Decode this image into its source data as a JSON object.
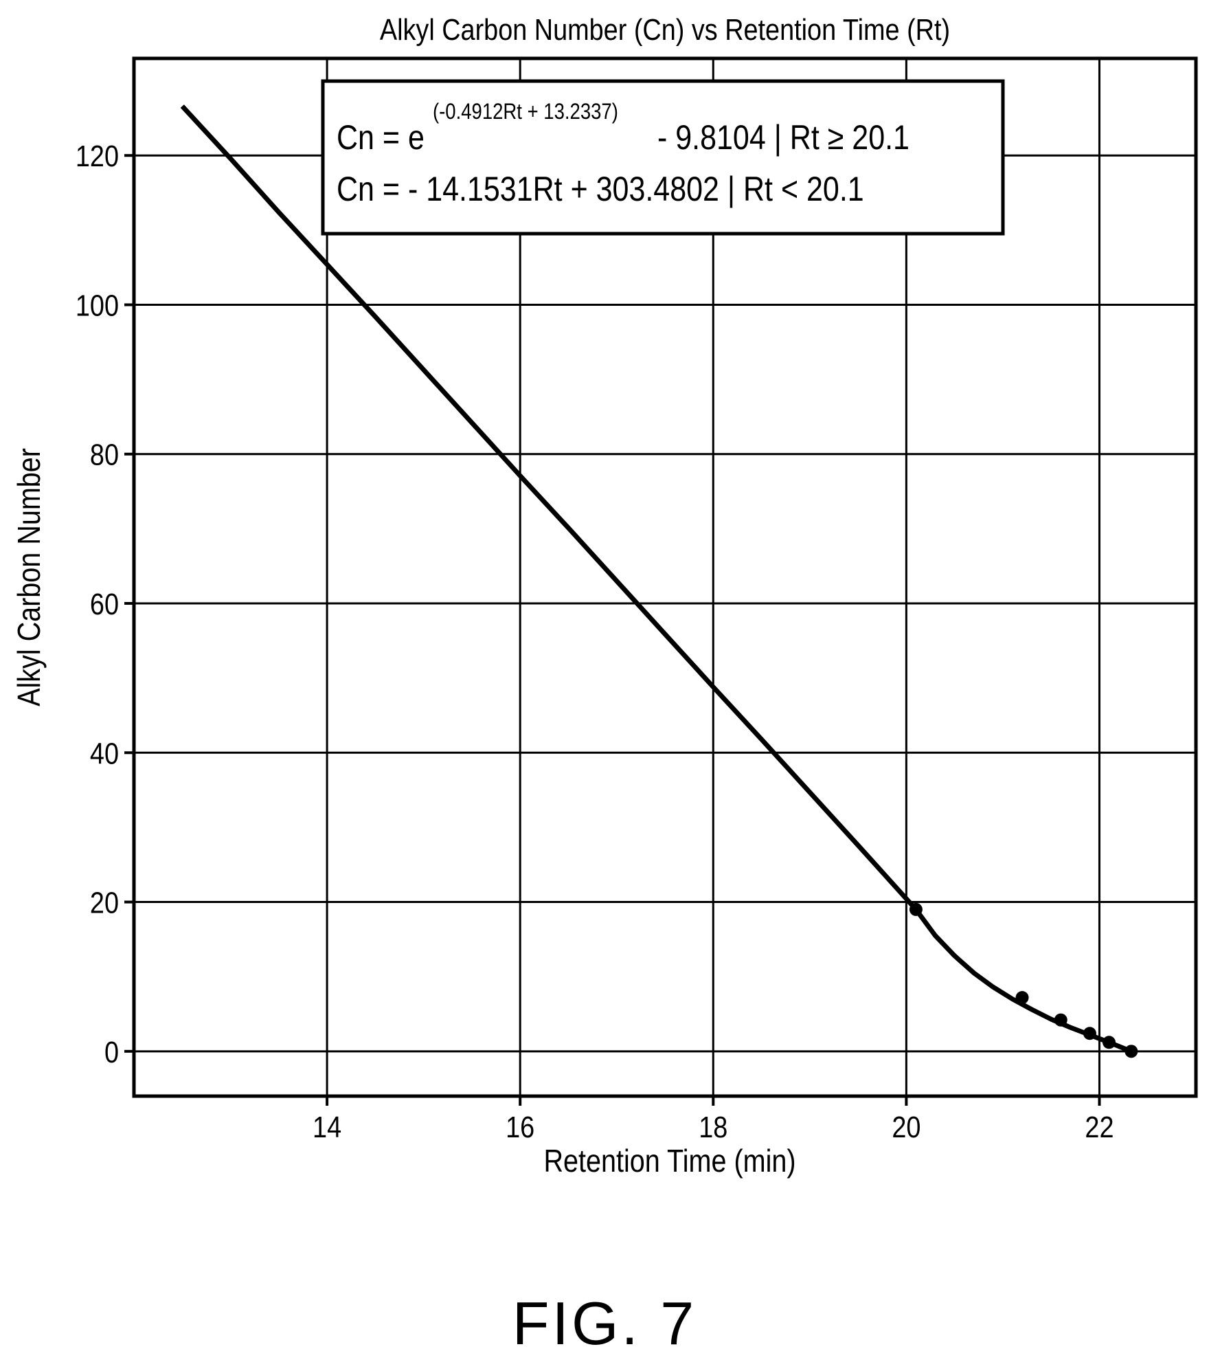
{
  "chart_data": {
    "type": "line",
    "title": "Alkyl Carbon Number (Cn) vs Retention Time (Rt)",
    "xlabel": "Retention Time (min)",
    "ylabel": "Alkyl Carbon Number",
    "xlim": [
      12,
      23
    ],
    "ylim": [
      -6,
      133
    ],
    "xticks": [
      14,
      16,
      18,
      20,
      22
    ],
    "yticks": [
      0,
      20,
      40,
      60,
      80,
      100,
      120
    ],
    "grid": true,
    "equations": {
      "line1_prefix": "Cn = e",
      "line1_exponent": "(-0.4912Rt + 13.2337)",
      "line1_suffix": "- 9.8104 | Rt ≥ 20.1",
      "line2": "Cn = - 14.1531Rt + 303.4802 | Rt < 20.1"
    },
    "series": [
      {
        "type": "line",
        "x": [
          12.5,
          13.0,
          13.5,
          14.0,
          14.5,
          15.0,
          15.5,
          16.0,
          16.5,
          17.0,
          17.5,
          18.0,
          18.5,
          19.0,
          19.5,
          20.1,
          20.3,
          20.5,
          20.7,
          20.9,
          21.1,
          21.3,
          21.5,
          21.7,
          21.9,
          22.1,
          22.33
        ],
        "y": [
          126.6,
          119.6,
          112.4,
          105.4,
          98.4,
          91.3,
          84.2,
          77.1,
          70.1,
          63.0,
          55.9,
          48.8,
          41.8,
          34.7,
          27.6,
          19.0,
          15.5,
          12.8,
          10.5,
          8.6,
          7.0,
          5.6,
          4.3,
          3.2,
          2.2,
          1.2,
          0.0
        ]
      },
      {
        "type": "scatter",
        "x": [
          20.1,
          21.2,
          21.6,
          21.9,
          22.1,
          22.33
        ],
        "y": [
          19.0,
          7.2,
          4.2,
          2.4,
          1.2,
          0.0
        ]
      }
    ]
  },
  "figure_label": "FIG. 7"
}
